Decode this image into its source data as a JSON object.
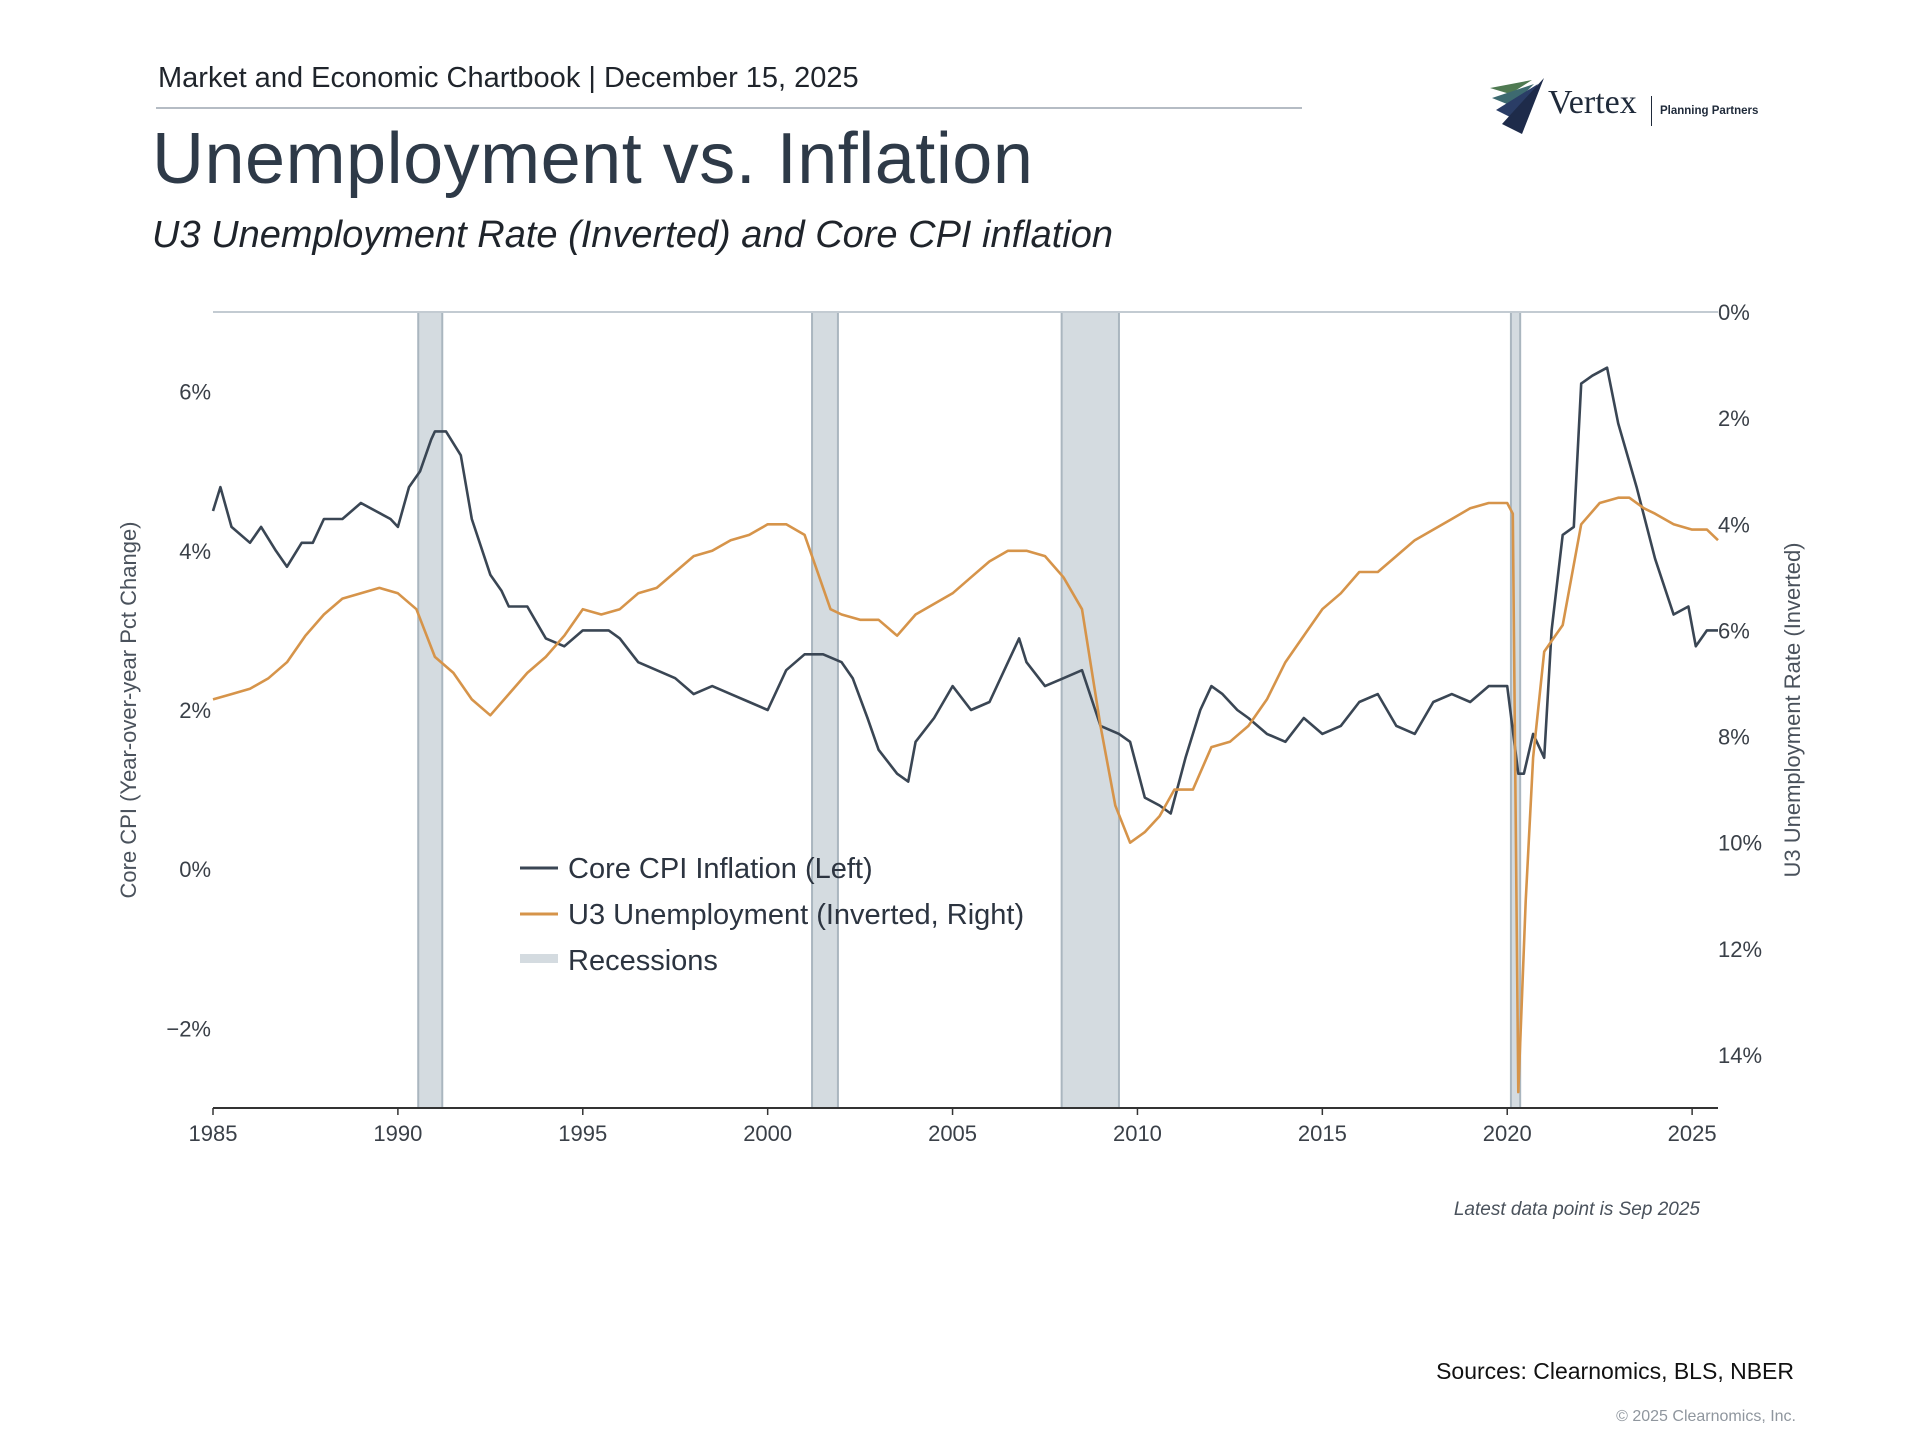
{
  "header": {
    "chartbook": "Market and Economic Chartbook | December 15, 2025",
    "title": "Unemployment vs. Inflation",
    "subtitle": "U3 Unemployment Rate (Inverted) and Core CPI inflation"
  },
  "logo": {
    "name": "Vertex",
    "tagline": "Planning Partners"
  },
  "footnote": "Latest data point is Sep 2025",
  "sources": "Sources: Clearnomics, BLS, NBER",
  "copyright": "© 2025 Clearnomics, Inc.",
  "colors": {
    "cpi": "#3a4654",
    "unemployment": "#d6944a",
    "recession": "#d4dbe0",
    "recession_edge": "#aab6bf",
    "axis": "#333333"
  },
  "chart_data": {
    "type": "line",
    "xlabel": "",
    "ylabel_left": "Core CPI (Year-over-year Pct Change)",
    "ylabel_right": "U3 Unemployment Rate (Inverted)",
    "xlim": [
      1985,
      2025.7
    ],
    "ylim_left": [
      -3,
      7
    ],
    "ylim_right": [
      15,
      0
    ],
    "y_right_inverted": true,
    "x_ticks": [
      "1985",
      "1990",
      "1995",
      "2000",
      "2005",
      "2010",
      "2015",
      "2020",
      "2025"
    ],
    "y_left_ticks": [
      {
        "v": 6,
        "label": "6%"
      },
      {
        "v": 4,
        "label": "4%"
      },
      {
        "v": 2,
        "label": "2%"
      },
      {
        "v": 0,
        "label": "0%"
      },
      {
        "v": -2,
        "label": "−2%"
      }
    ],
    "y_right_ticks": [
      {
        "v": 0,
        "label": "0%"
      },
      {
        "v": 2,
        "label": "2%"
      },
      {
        "v": 4,
        "label": "4%"
      },
      {
        "v": 6,
        "label": "6%"
      },
      {
        "v": 8,
        "label": "8%"
      },
      {
        "v": 10,
        "label": "10%"
      },
      {
        "v": 12,
        "label": "12%"
      },
      {
        "v": 14,
        "label": "14%"
      }
    ],
    "legend": [
      "Core CPI Inflation (Left)",
      "U3 Unemployment (Inverted, Right)",
      "Recessions"
    ],
    "recessions": [
      [
        1990.55,
        1991.2
      ],
      [
        2001.2,
        2001.9
      ],
      [
        2007.95,
        2009.5
      ],
      [
        2020.1,
        2020.35
      ]
    ],
    "series": [
      {
        "name": "Core CPI Inflation (Left)",
        "axis": "left",
        "x": [
          1985.0,
          1985.2,
          1985.5,
          1986.0,
          1986.3,
          1986.7,
          1987.0,
          1987.4,
          1987.7,
          1988.0,
          1988.5,
          1989.0,
          1989.4,
          1989.8,
          1990.0,
          1990.3,
          1990.6,
          1990.9,
          1991.0,
          1991.3,
          1991.7,
          1992.0,
          1992.5,
          1992.8,
          1993.0,
          1993.5,
          1994.0,
          1994.5,
          1995.0,
          1995.3,
          1995.7,
          1996.0,
          1996.5,
          1997.0,
          1997.5,
          1998.0,
          1998.5,
          1999.0,
          1999.5,
          2000.0,
          2000.5,
          2001.0,
          2001.5,
          2002.0,
          2002.3,
          2002.7,
          2003.0,
          2003.5,
          2003.8,
          2004.0,
          2004.5,
          2005.0,
          2005.5,
          2006.0,
          2006.5,
          2006.8,
          2007.0,
          2007.5,
          2008.0,
          2008.5,
          2009.0,
          2009.5,
          2009.8,
          2010.2,
          2010.6,
          2010.9,
          2011.3,
          2011.7,
          2012.0,
          2012.3,
          2012.7,
          2013.0,
          2013.5,
          2014.0,
          2014.5,
          2015.0,
          2015.5,
          2016.0,
          2016.5,
          2017.0,
          2017.5,
          2018.0,
          2018.5,
          2019.0,
          2019.5,
          2020.0,
          2020.3,
          2020.45,
          2020.7,
          2021.0,
          2021.2,
          2021.5,
          2021.8,
          2022.0,
          2022.3,
          2022.7,
          2023.0,
          2023.5,
          2024.0,
          2024.5,
          2024.9,
          2025.1,
          2025.4,
          2025.7
        ],
        "values": [
          4.5,
          4.8,
          4.3,
          4.1,
          4.3,
          4.0,
          3.8,
          4.1,
          4.1,
          4.4,
          4.4,
          4.6,
          4.5,
          4.4,
          4.3,
          4.8,
          5.0,
          5.4,
          5.5,
          5.5,
          5.2,
          4.4,
          3.7,
          3.5,
          3.3,
          3.3,
          2.9,
          2.8,
          3.0,
          3.0,
          3.0,
          2.9,
          2.6,
          2.5,
          2.4,
          2.2,
          2.3,
          2.2,
          2.1,
          2.0,
          2.5,
          2.7,
          2.7,
          2.6,
          2.4,
          1.9,
          1.5,
          1.2,
          1.1,
          1.6,
          1.9,
          2.3,
          2.0,
          2.1,
          2.6,
          2.9,
          2.6,
          2.3,
          2.4,
          2.5,
          1.8,
          1.7,
          1.6,
          0.9,
          0.8,
          0.7,
          1.4,
          2.0,
          2.3,
          2.2,
          2.0,
          1.9,
          1.7,
          1.6,
          1.9,
          1.7,
          1.8,
          2.1,
          2.2,
          1.8,
          1.7,
          2.1,
          2.2,
          2.1,
          2.3,
          2.3,
          1.2,
          1.2,
          1.7,
          1.4,
          3.0,
          4.2,
          4.3,
          6.1,
          6.2,
          6.3,
          5.6,
          4.8,
          3.9,
          3.2,
          3.3,
          2.8,
          3.0,
          3.0
        ],
        "color": "#3a4654"
      },
      {
        "name": "U3 Unemployment (Inverted, Right)",
        "axis": "right",
        "x": [
          1985.0,
          1985.5,
          1986.0,
          1986.5,
          1987.0,
          1987.5,
          1988.0,
          1988.5,
          1989.0,
          1989.5,
          1990.0,
          1990.5,
          1991.0,
          1991.5,
          1992.0,
          1992.5,
          1993.0,
          1993.5,
          1994.0,
          1994.5,
          1995.0,
          1995.5,
          1996.0,
          1996.5,
          1997.0,
          1997.5,
          1998.0,
          1998.5,
          1999.0,
          1999.5,
          2000.0,
          2000.5,
          2001.0,
          2001.3,
          2001.7,
          2002.0,
          2002.5,
          2003.0,
          2003.5,
          2004.0,
          2004.5,
          2005.0,
          2005.5,
          2006.0,
          2006.5,
          2007.0,
          2007.5,
          2008.0,
          2008.5,
          2009.0,
          2009.4,
          2009.8,
          2010.2,
          2010.6,
          2011.0,
          2011.5,
          2012.0,
          2012.5,
          2013.0,
          2013.5,
          2014.0,
          2014.5,
          2015.0,
          2015.5,
          2016.0,
          2016.5,
          2017.0,
          2017.5,
          2018.0,
          2018.5,
          2019.0,
          2019.5,
          2020.0,
          2020.15,
          2020.3,
          2020.5,
          2020.7,
          2021.0,
          2021.5,
          2022.0,
          2022.5,
          2023.0,
          2023.3,
          2023.7,
          2024.0,
          2024.5,
          2025.0,
          2025.4,
          2025.7
        ],
        "values": [
          7.3,
          7.2,
          7.1,
          6.9,
          6.6,
          6.1,
          5.7,
          5.4,
          5.3,
          5.2,
          5.3,
          5.6,
          6.5,
          6.8,
          7.3,
          7.6,
          7.2,
          6.8,
          6.5,
          6.1,
          5.6,
          5.7,
          5.6,
          5.3,
          5.2,
          4.9,
          4.6,
          4.5,
          4.3,
          4.2,
          4.0,
          4.0,
          4.2,
          4.8,
          5.6,
          5.7,
          5.8,
          5.8,
          6.1,
          5.7,
          5.5,
          5.3,
          5.0,
          4.7,
          4.5,
          4.5,
          4.6,
          5.0,
          5.6,
          7.8,
          9.3,
          10.0,
          9.8,
          9.5,
          9.0,
          9.0,
          8.2,
          8.1,
          7.8,
          7.3,
          6.6,
          6.1,
          5.6,
          5.3,
          4.9,
          4.9,
          4.6,
          4.3,
          4.1,
          3.9,
          3.7,
          3.6,
          3.6,
          3.8,
          14.7,
          11.1,
          8.4,
          6.4,
          5.9,
          4.0,
          3.6,
          3.5,
          3.5,
          3.7,
          3.8,
          4.0,
          4.1,
          4.1,
          4.3
        ],
        "color": "#d6944a"
      }
    ]
  }
}
